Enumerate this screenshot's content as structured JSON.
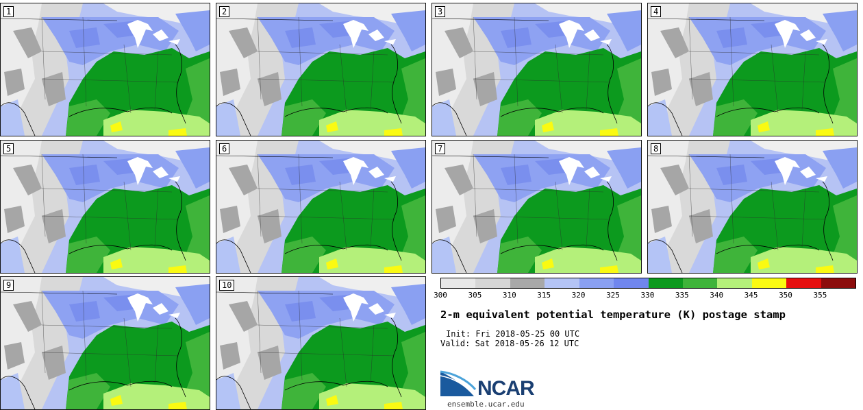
{
  "panels": [
    {
      "label": "1"
    },
    {
      "label": "2"
    },
    {
      "label": "3"
    },
    {
      "label": "4"
    },
    {
      "label": "5"
    },
    {
      "label": "6"
    },
    {
      "label": "7"
    },
    {
      "label": "8"
    },
    {
      "label": "9"
    },
    {
      "label": "10"
    }
  ],
  "colorbar": {
    "colors": [
      "#e8e8e8",
      "#d6d6d6",
      "#a8a8a8",
      "#b4c4f6",
      "#8aa0f2",
      "#7086ee",
      "#0c9a1e",
      "#3fb43a",
      "#b4f07a",
      "#fafa12",
      "#e60e0e",
      "#8c0c0c"
    ],
    "ticks": [
      "300",
      "305",
      "310",
      "315",
      "320",
      "325",
      "330",
      "335",
      "340",
      "345",
      "350",
      "355"
    ]
  },
  "title": "2-m equivalent potential temperature (K) postage stamp",
  "init": "Init: Fri 2018-05-25 00 UTC",
  "valid": "Valid: Sat 2018-05-26 12 UTC",
  "logo": {
    "text": "NCAR",
    "url_text": "ensemble.ucar.edu"
  }
}
